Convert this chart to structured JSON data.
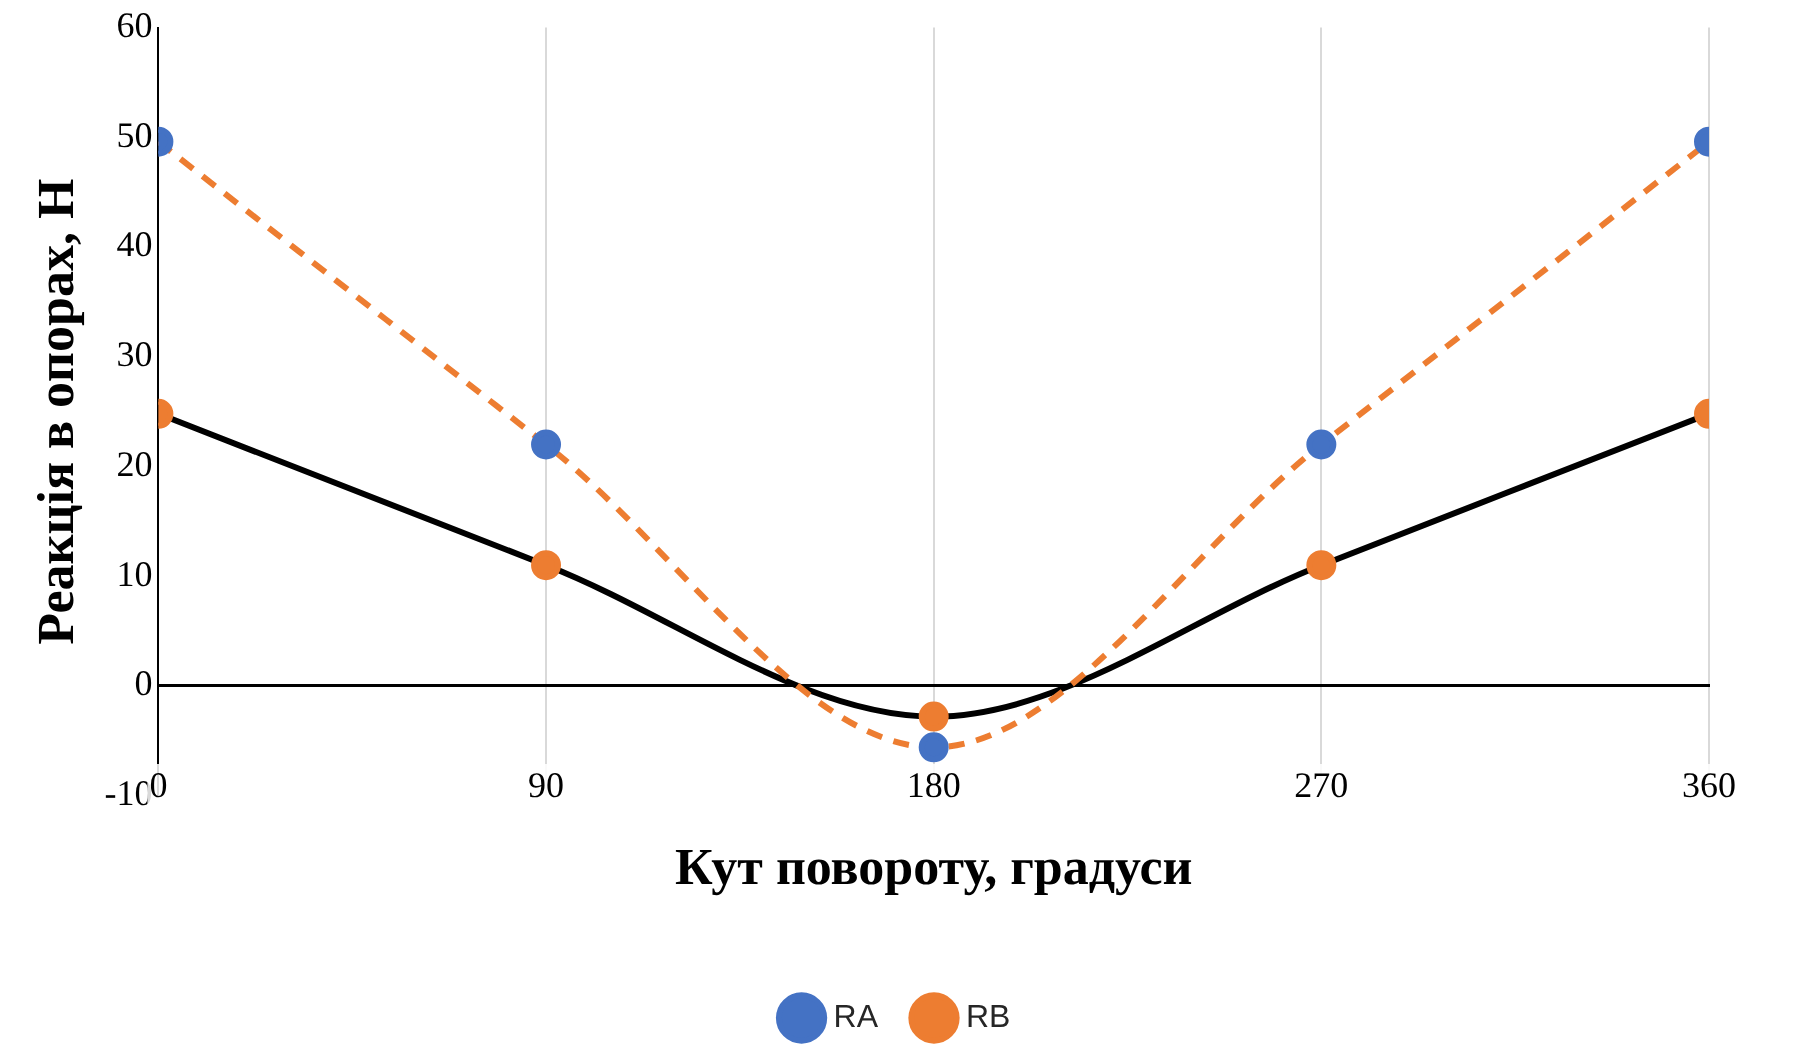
{
  "chart_data": {
    "type": "line",
    "xlabel": "Кут повороту, градуси",
    "ylabel": "Реакція в опорах, Н",
    "x": [
      0,
      90,
      180,
      270,
      360
    ],
    "series": [
      {
        "name": "RA",
        "color": "#ed7d31",
        "colors": [
          "#4472c4",
          "#4472c4",
          "#4472c4",
          "#4472c4",
          "#4472c4"
        ],
        "line_style": "dashed",
        "values": [
          49.6,
          22,
          -5.6,
          22,
          49.6
        ]
      },
      {
        "name": "RB",
        "color": "#000000",
        "colors": [
          "#ed7d31",
          "#ed7d31",
          "#ed7d31",
          "#ed7d31",
          "#ed7d31"
        ],
        "line_style": "solid",
        "values": [
          24.8,
          11,
          -2.8,
          11,
          24.8
        ]
      }
    ],
    "xlim": [
      0,
      360
    ],
    "xticks": [
      0,
      90,
      180,
      270,
      360
    ],
    "ylim": [
      -10,
      60
    ],
    "yticks": [
      -10,
      0,
      10,
      20,
      30,
      40,
      50,
      60
    ],
    "grid": "x",
    "legend": "bottom",
    "marker": "circle"
  }
}
